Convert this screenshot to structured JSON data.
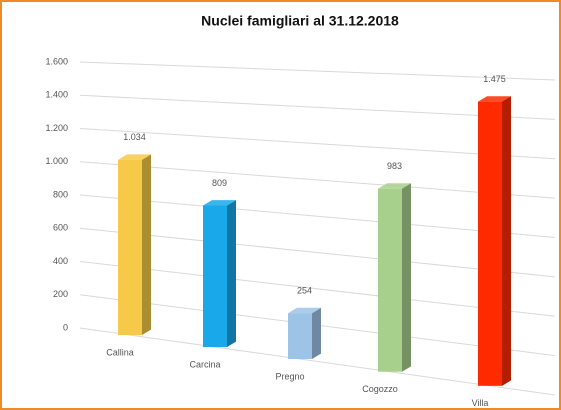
{
  "chart_data": {
    "type": "bar3d",
    "title": "Nuclei famigliari al 31.12.2018",
    "categories": [
      "Callina",
      "Carcina",
      "Pregno",
      "Cogozzo",
      "Villa"
    ],
    "values": [
      1034,
      809,
      254,
      983,
      1475
    ],
    "value_labels": [
      "1.034",
      "809",
      "254",
      "983",
      "1.475"
    ],
    "colors": [
      "#f7c948",
      "#19a9ea",
      "#9dc3e6",
      "#a8d08d",
      "#ff2a00"
    ],
    "ylim": [
      0,
      1600
    ],
    "yticks": [
      0,
      200,
      400,
      600,
      800,
      {
        "value": 1000,
        "label": "1.000"
      },
      {
        "value": 1200,
        "label": "1.200"
      },
      {
        "value": 1400,
        "label": "1.400"
      },
      {
        "value": 1600,
        "label": "1.600"
      }
    ],
    "grid": true
  }
}
